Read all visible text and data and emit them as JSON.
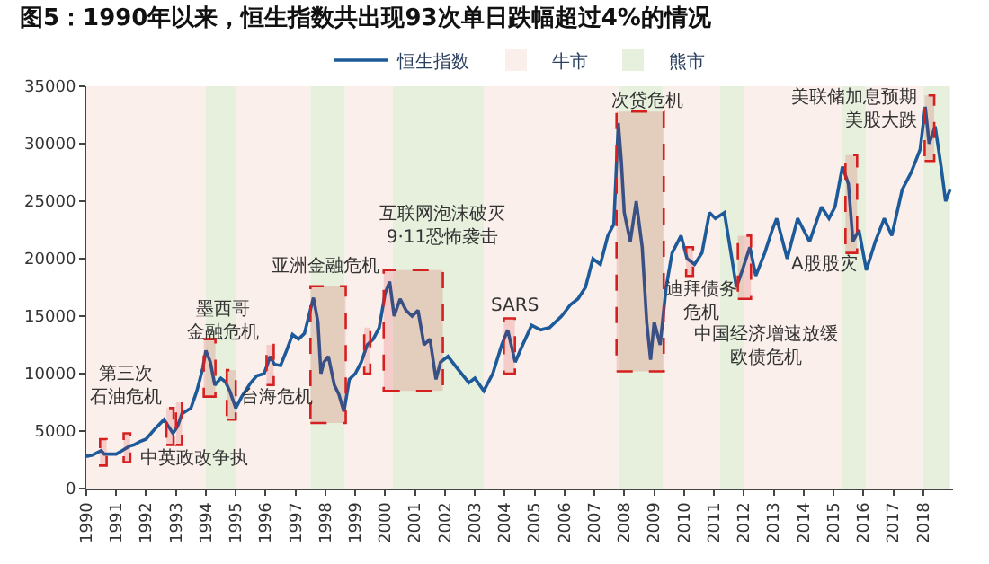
{
  "chart_data": {
    "type": "line",
    "title": "图5：1990年以来，恒生指数共出现93次单日跌幅超过4%的情况",
    "x": [
      1990.0,
      1990.2,
      1990.5,
      1990.6,
      1990.75,
      1991.0,
      1991.2,
      1991.45,
      1991.6,
      1991.8,
      1992.0,
      1992.3,
      1992.6,
      1992.75,
      1992.9,
      1993.05,
      1993.2,
      1993.5,
      1993.7,
      1993.9,
      1994.0,
      1994.15,
      1994.3,
      1994.5,
      1994.65,
      1994.8,
      1995.0,
      1995.2,
      1995.5,
      1995.7,
      1995.95,
      1996.15,
      1996.3,
      1996.5,
      1996.7,
      1996.9,
      1997.1,
      1997.3,
      1997.6,
      1997.75,
      1997.85,
      1997.95,
      1998.1,
      1998.3,
      1998.45,
      1998.62,
      1998.8,
      1999.0,
      1999.2,
      1999.4,
      1999.6,
      1999.8,
      2000.0,
      2000.15,
      2000.3,
      2000.5,
      2000.7,
      2000.9,
      2001.1,
      2001.3,
      2001.5,
      2001.7,
      2001.85,
      2002.1,
      2002.4,
      2002.8,
      2003.0,
      2003.3,
      2003.6,
      2003.9,
      2004.1,
      2004.35,
      2004.6,
      2004.9,
      2005.2,
      2005.5,
      2005.9,
      2006.2,
      2006.45,
      2006.7,
      2006.95,
      2007.2,
      2007.45,
      2007.65,
      2007.8,
      2007.9,
      2008.0,
      2008.2,
      2008.4,
      2008.6,
      2008.75,
      2008.88,
      2009.0,
      2009.2,
      2009.4,
      2009.6,
      2009.9,
      2010.1,
      2010.35,
      2010.6,
      2010.85,
      2011.05,
      2011.35,
      2011.6,
      2011.75,
      2011.95,
      2012.2,
      2012.4,
      2012.7,
      2012.95,
      2013.1,
      2013.45,
      2013.8,
      2014.2,
      2014.6,
      2014.85,
      2015.05,
      2015.3,
      2015.5,
      2015.65,
      2015.85,
      2016.1,
      2016.4,
      2016.7,
      2016.95,
      2017.3,
      2017.6,
      2017.9,
      2018.07,
      2018.2,
      2018.4,
      2018.6,
      2018.75,
      2018.9
    ],
    "series": [
      {
        "name": "恒生指数",
        "color": "#1d5a99",
        "values": [
          2800,
          2900,
          3300,
          3000,
          3000,
          3000,
          3300,
          3700,
          3800,
          4100,
          4300,
          5200,
          6000,
          5400,
          4800,
          5400,
          6500,
          7000,
          8500,
          10500,
          12000,
          11000,
          9000,
          9600,
          9300,
          8500,
          7000,
          8000,
          9200,
          9800,
          10000,
          11500,
          10800,
          10700,
          12000,
          13400,
          13000,
          13500,
          16600,
          14500,
          10000,
          11000,
          11500,
          9000,
          8200,
          6700,
          9500,
          10000,
          11000,
          12500,
          13000,
          14000,
          17000,
          18000,
          15000,
          16500,
          15500,
          15000,
          15500,
          12500,
          13000,
          9500,
          11000,
          11500,
          10500,
          9200,
          9600,
          8500,
          10000,
          12500,
          13800,
          11000,
          12500,
          14200,
          13800,
          14000,
          15000,
          16000,
          16500,
          17500,
          20000,
          19500,
          22000,
          23000,
          31800,
          28500,
          24000,
          21500,
          25000,
          21000,
          14500,
          11200,
          14500,
          12500,
          17500,
          20500,
          22000,
          20000,
          19500,
          20500,
          24000,
          23500,
          24000,
          20000,
          17500,
          19000,
          21000,
          18500,
          20500,
          22500,
          23500,
          20000,
          23500,
          21500,
          24500,
          23500,
          24500,
          28000,
          26500,
          21500,
          22500,
          19000,
          21500,
          23500,
          22000,
          26000,
          27500,
          29500,
          33200,
          30000,
          31500,
          28000,
          25000,
          26000
        ]
      }
    ],
    "xlim": [
      1990,
      2019
    ],
    "xticks": [
      1990,
      1991,
      1992,
      1993,
      1994,
      1995,
      1996,
      1997,
      1998,
      1999,
      2000,
      2001,
      2002,
      2003,
      2004,
      2005,
      2006,
      2007,
      2008,
      2009,
      2010,
      2011,
      2012,
      2013,
      2014,
      2015,
      2016,
      2017,
      2018
    ],
    "ylim": [
      0,
      35000
    ],
    "yticks": [
      0,
      5000,
      10000,
      15000,
      20000,
      25000,
      30000,
      35000
    ],
    "grid": false,
    "legend": "top",
    "marker": "none",
    "line_style": "solid",
    "bands": [
      {
        "axis": "x",
        "from": 1990,
        "to": 1994.0,
        "color": "#fbefeb",
        "label": "牛市"
      },
      {
        "axis": "x",
        "from": 1994.0,
        "to": 1995.0,
        "color": "#e6f0dd",
        "label": "熊市"
      },
      {
        "axis": "x",
        "from": 1995.0,
        "to": 1997.5,
        "color": "#fbefeb"
      },
      {
        "axis": "x",
        "from": 1997.5,
        "to": 1998.65,
        "color": "#e6f0dd"
      },
      {
        "axis": "x",
        "from": 1998.65,
        "to": 2000.25,
        "color": "#fbefeb"
      },
      {
        "axis": "x",
        "from": 2000.25,
        "to": 2003.3,
        "color": "#e6f0dd"
      },
      {
        "axis": "x",
        "from": 2003.3,
        "to": 2007.8,
        "color": "#fbefeb"
      },
      {
        "axis": "x",
        "from": 2007.8,
        "to": 2009.3,
        "color": "#e6f0dd"
      },
      {
        "axis": "x",
        "from": 2009.3,
        "to": 2011.2,
        "color": "#fbefeb"
      },
      {
        "axis": "x",
        "from": 2011.2,
        "to": 2012.0,
        "color": "#e6f0dd"
      },
      {
        "axis": "x",
        "from": 2012.0,
        "to": 2015.3,
        "color": "#fbefeb"
      },
      {
        "axis": "x",
        "from": 2015.3,
        "to": 2016.1,
        "color": "#e6f0dd"
      },
      {
        "axis": "x",
        "from": 2016.1,
        "to": 2018.0,
        "color": "#fbefeb"
      },
      {
        "axis": "x",
        "from": 2018.0,
        "to": 2018.9,
        "color": "#e6f0dd"
      },
      {
        "axis": "x",
        "from": 1990.46,
        "to": 1990.68,
        "color": "#d62020"
      },
      {
        "axis": "x",
        "from": 1991.25,
        "to": 1991.47,
        "color": "#d62020"
      },
      {
        "axis": "x",
        "from": 1992.68,
        "to": 1992.92,
        "color": "#d62020"
      },
      {
        "axis": "x",
        "from": 1993.0,
        "to": 1993.2,
        "color": "#d62020"
      },
      {
        "axis": "x",
        "from": 1993.93,
        "to": 1994.32,
        "color": "#d62020"
      },
      {
        "axis": "x",
        "from": 1994.7,
        "to": 1995.0,
        "color": "#d62020"
      },
      {
        "axis": "x",
        "from": 1996.03,
        "to": 1996.27,
        "color": "#d62020"
      },
      {
        "axis": "x",
        "from": 1997.5,
        "to": 1998.68,
        "color": "#d62020"
      },
      {
        "axis": "x",
        "from": 1999.3,
        "to": 1999.5,
        "color": "#d62020"
      },
      {
        "axis": "x",
        "from": 1999.95,
        "to": 2001.93,
        "color": "#d62020"
      },
      {
        "axis": "x",
        "from": 2003.97,
        "to": 2004.34,
        "color": "#d62020"
      },
      {
        "axis": "x",
        "from": 2007.74,
        "to": 2009.32,
        "color": "#d62020"
      },
      {
        "axis": "x",
        "from": 2010.07,
        "to": 2010.3,
        "color": "#d62020"
      },
      {
        "axis": "x",
        "from": 2011.8,
        "to": 2012.24,
        "color": "#d62020"
      },
      {
        "axis": "x",
        "from": 2015.4,
        "to": 2015.79,
        "color": "#d62020"
      },
      {
        "axis": "x",
        "from": 2018.05,
        "to": 2018.37,
        "color": "#d62020"
      }
    ],
    "annotations": [
      "第三次石油危机",
      "中英政改争执",
      "墨西哥金融危机",
      "台海危机",
      "亚洲金融危机",
      "互联网泡沫破灭9·11恐怖袭击",
      "SARS",
      "次贷危机",
      "迪拜债务危机",
      "中国经济增速放缓欧债危机",
      "A股股灾",
      "美联储加息预期美股大跌"
    ]
  }
}
